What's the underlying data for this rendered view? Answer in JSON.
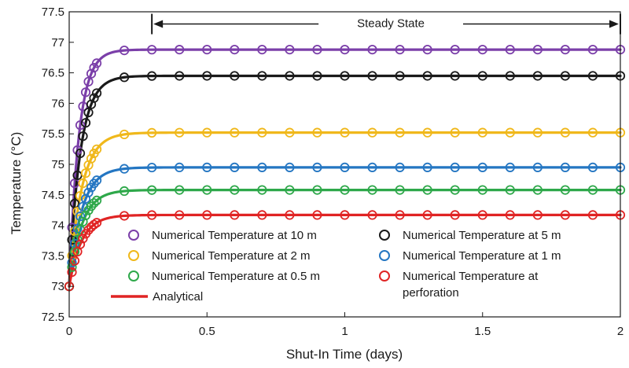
{
  "chart_data": {
    "type": "line",
    "xlabel": "Shut-In Time (days)",
    "ylabel": "Temperature (°C)",
    "xlim": [
      0,
      2
    ],
    "ylim": [
      72.5,
      77.5
    ],
    "x_ticks": [
      0,
      0.5,
      1,
      1.5,
      2
    ],
    "x_tick_labels": [
      "0",
      "0.5",
      "1",
      "1.5",
      "2"
    ],
    "y_ticks": [
      72.5,
      73,
      73.5,
      74,
      74.5,
      75,
      75.5,
      76,
      76.5,
      77,
      77.5
    ],
    "y_tick_labels": [
      "72.5",
      "73",
      "73.5",
      "74",
      "74.5",
      "75",
      "75.5",
      "76",
      "76.5",
      "77",
      "77.5"
    ],
    "grid": false,
    "legend_position": "lower-center",
    "annotations": [
      {
        "text": "Steady State",
        "x_start": 0.3,
        "x_end": 2.0,
        "y": 77.3
      }
    ],
    "marker_x": [
      0,
      0.01,
      0.02,
      0.03,
      0.04,
      0.05,
      0.06,
      0.07,
      0.08,
      0.09,
      0.1,
      0.2,
      0.3,
      0.4,
      0.5,
      0.6,
      0.7,
      0.8,
      0.9,
      1.0,
      1.1,
      1.2,
      1.3,
      1.4,
      1.5,
      1.6,
      1.7,
      1.8,
      1.9,
      2.0
    ],
    "series": [
      {
        "name": "Numerical Temperature at 10 m",
        "kind": "markers",
        "color": "#7b3fa9",
        "initial": 73.0,
        "final": 76.88,
        "tau": 0.035
      },
      {
        "name": "Numerical Temperature at 5 m",
        "kind": "markers",
        "color": "#1a1a1a",
        "initial": 73.0,
        "final": 76.45,
        "tau": 0.04
      },
      {
        "name": "Numerical Temperature at 2 m",
        "kind": "markers",
        "color": "#f0b81b",
        "initial": 73.0,
        "final": 75.52,
        "tau": 0.045
      },
      {
        "name": "Numerical Temperature at 1 m",
        "kind": "markers",
        "color": "#2476c2",
        "initial": 73.0,
        "final": 74.95,
        "tau": 0.045
      },
      {
        "name": "Numerical Temperature at 0.5 m",
        "kind": "markers",
        "color": "#2ea84a",
        "initial": 73.0,
        "final": 74.58,
        "tau": 0.045
      },
      {
        "name": "Numerical Temperature at perforation",
        "kind": "markers",
        "color": "#e02424",
        "initial": 73.0,
        "final": 74.17,
        "tau": 0.045
      },
      {
        "name": "Analytical",
        "kind": "lines",
        "color": "#e02424"
      }
    ]
  }
}
